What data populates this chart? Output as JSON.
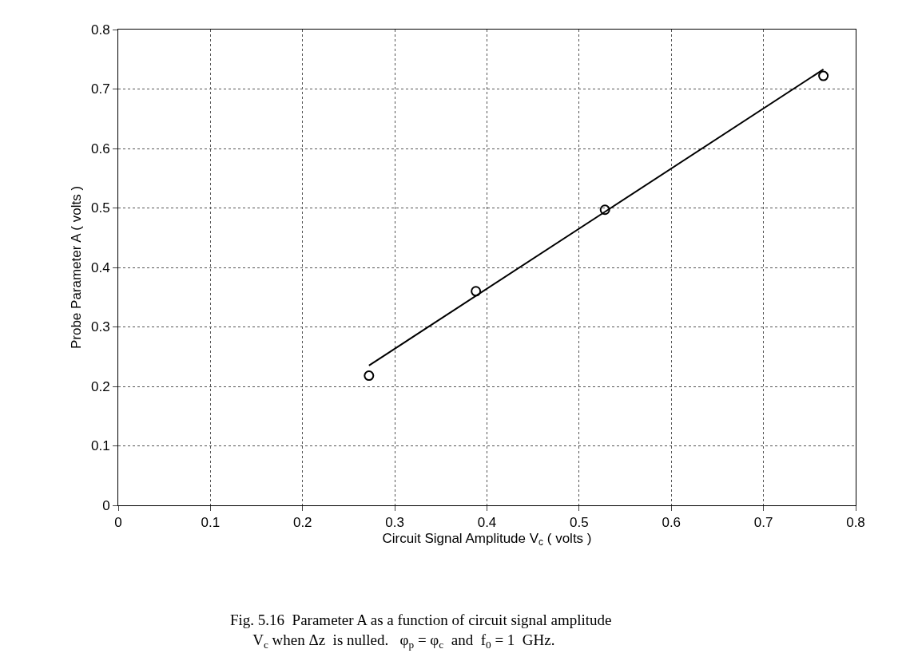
{
  "chart_data": {
    "type": "scatter",
    "xlabel": "Circuit Signal Amplitude V$_{c}$ ( volts )",
    "ylabel": "Probe Parameter A ( volts )",
    "series": [
      {
        "color": "#000000",
        "marker": "circle",
        "x": [
          0.272,
          0.388,
          0.528,
          0.765
        ],
        "values": [
          0.218,
          0.36,
          0.497,
          0.722
        ]
      },
      {
        "type": "line",
        "color": "#000000",
        "marker": "none",
        "line_style": "solid",
        "x": [
          0.272,
          0.765
        ],
        "values": [
          0.235,
          0.733
        ]
      }
    ],
    "xlim": [
      0,
      0.8
    ],
    "xticks": [
      0,
      0.1,
      0.2,
      0.3,
      0.4,
      0.5,
      0.6,
      0.7,
      0.8
    ],
    "ylim": [
      0,
      0.8
    ],
    "yticks": [
      0,
      0.1,
      0.2,
      0.3,
      0.4,
      0.5,
      0.6,
      0.7,
      0.8
    ],
    "grid": true,
    "legend": false,
    "annotations": [
      "Fig. 5.16  Parameter A as a function of circuit signal amplitude\n      V$_{c}$ when Δz  is nulled.   φ$_{p}$ = φ$_{c}$  and  f$_{0}$ = 1  GHz."
    ]
  }
}
